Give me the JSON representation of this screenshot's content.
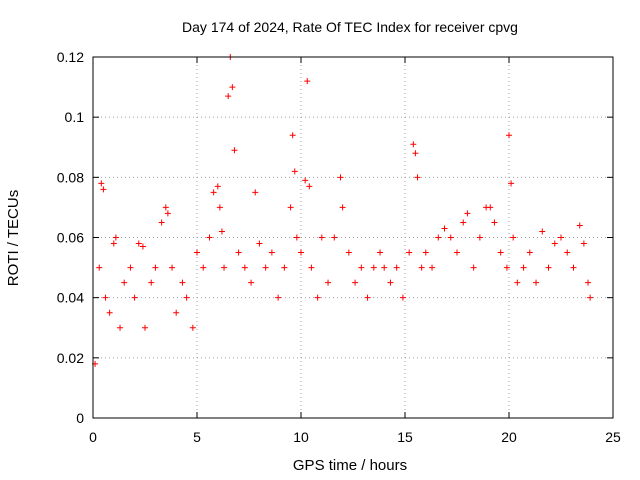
{
  "chart_data": {
    "type": "scatter",
    "title": "Day 174 of 2024, Rate Of TEC Index for receiver cpvg",
    "xlabel": "GPS time / hours",
    "ylabel": "ROTI / TECUs",
    "xlim": [
      0,
      25
    ],
    "ylim": [
      0,
      0.12
    ],
    "xticks": [
      0,
      5,
      10,
      15,
      20,
      25
    ],
    "xtick_labels": [
      "0",
      "5",
      "10",
      "15",
      "20",
      "25"
    ],
    "yticks": [
      0,
      0.02,
      0.04,
      0.06,
      0.08,
      0.1,
      0.12
    ],
    "ytick_labels": [
      "0",
      "0.02",
      "0.04",
      "0.06",
      "0.08",
      "0.1",
      "0.12"
    ],
    "grid": true,
    "marker": "+",
    "color": "#ff0000",
    "series": [
      {
        "name": "ROTI",
        "x": [
          0.1,
          0.3,
          0.4,
          0.5,
          0.6,
          0.8,
          1.0,
          1.1,
          1.3,
          1.5,
          1.8,
          2.0,
          2.2,
          2.4,
          2.5,
          2.8,
          3.0,
          3.3,
          3.5,
          3.6,
          3.8,
          4.0,
          4.3,
          4.5,
          4.8,
          5.0,
          5.3,
          5.6,
          5.8,
          6.0,
          6.1,
          6.2,
          6.3,
          6.5,
          6.6,
          6.7,
          6.8,
          7.0,
          7.3,
          7.6,
          7.8,
          8.0,
          8.3,
          8.6,
          8.9,
          9.2,
          9.5,
          9.6,
          9.7,
          9.8,
          10.0,
          10.2,
          10.3,
          10.4,
          10.5,
          10.8,
          11.0,
          11.3,
          11.6,
          11.9,
          12.0,
          12.3,
          12.6,
          12.9,
          13.2,
          13.5,
          13.8,
          14.0,
          14.3,
          14.6,
          14.9,
          15.2,
          15.4,
          15.5,
          15.6,
          15.8,
          16.0,
          16.3,
          16.6,
          16.9,
          17.2,
          17.5,
          17.8,
          18.0,
          18.3,
          18.6,
          18.9,
          19.1,
          19.3,
          19.6,
          19.9,
          20.0,
          20.1,
          20.2,
          20.4,
          20.7,
          21.0,
          21.3,
          21.6,
          21.9,
          22.2,
          22.5,
          22.8,
          23.1,
          23.4,
          23.6,
          23.8,
          23.9
        ],
        "y": [
          0.018,
          0.05,
          0.078,
          0.076,
          0.04,
          0.035,
          0.058,
          0.06,
          0.03,
          0.045,
          0.05,
          0.04,
          0.058,
          0.057,
          0.03,
          0.045,
          0.05,
          0.065,
          0.07,
          0.068,
          0.05,
          0.035,
          0.045,
          0.04,
          0.03,
          0.055,
          0.05,
          0.06,
          0.075,
          0.077,
          0.07,
          0.062,
          0.05,
          0.107,
          0.12,
          0.11,
          0.089,
          0.055,
          0.05,
          0.045,
          0.075,
          0.058,
          0.05,
          0.055,
          0.04,
          0.05,
          0.07,
          0.094,
          0.082,
          0.06,
          0.055,
          0.079,
          0.112,
          0.077,
          0.05,
          0.04,
          0.06,
          0.045,
          0.06,
          0.08,
          0.07,
          0.055,
          0.045,
          0.05,
          0.04,
          0.05,
          0.055,
          0.05,
          0.045,
          0.05,
          0.04,
          0.055,
          0.091,
          0.088,
          0.08,
          0.05,
          0.055,
          0.05,
          0.06,
          0.063,
          0.06,
          0.055,
          0.065,
          0.068,
          0.05,
          0.06,
          0.07,
          0.07,
          0.065,
          0.055,
          0.05,
          0.094,
          0.078,
          0.06,
          0.045,
          0.05,
          0.055,
          0.045,
          0.062,
          0.05,
          0.058,
          0.06,
          0.055,
          0.05,
          0.064,
          0.058,
          0.045,
          0.04
        ]
      }
    ]
  }
}
